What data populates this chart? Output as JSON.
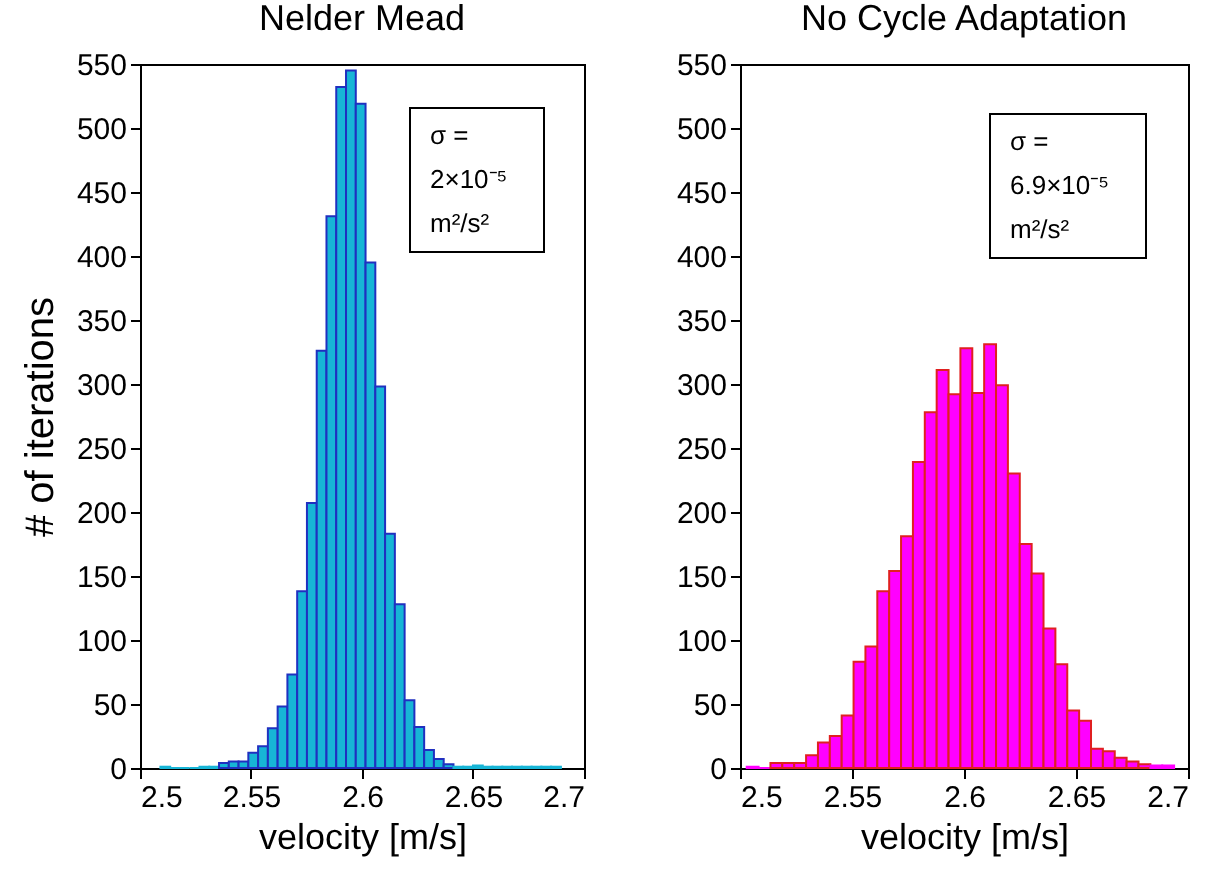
{
  "chart_data": [
    {
      "type": "histogram",
      "title": "Nelder Mead",
      "xlabel": "velocity [m/s]",
      "ylabel": "# of iterations",
      "color": "#17b5d6",
      "bins": [
        2.5092,
        2.5136,
        2.518,
        2.5224,
        2.5268,
        2.5312,
        2.5356,
        2.54,
        2.5444,
        2.5488,
        2.5532,
        2.5576,
        2.562,
        2.5664,
        2.5708,
        2.5752,
        2.5796,
        2.584,
        2.5884,
        2.5928,
        2.5972,
        2.6016,
        2.606,
        2.6104,
        2.6148,
        2.6192,
        2.6236,
        2.628,
        2.6324,
        2.6368,
        2.6412,
        2.6456,
        2.65,
        2.6544,
        2.6588,
        2.6632,
        2.6676,
        2.672,
        2.6764,
        2.6808,
        2.6852,
        2.6896
      ],
      "values": [
        1,
        0,
        0,
        0,
        1,
        1,
        4,
        5,
        5,
        12,
        17,
        31,
        48,
        73,
        138,
        207,
        326,
        431,
        532,
        545,
        519,
        395,
        298,
        183,
        128,
        53,
        32,
        14,
        7,
        3,
        1,
        1,
        2,
        1,
        1,
        1,
        1,
        1,
        1,
        1,
        1
      ],
      "xlim": [
        2.5,
        2.7
      ],
      "xticks": [
        2.5,
        2.55,
        2.6,
        2.65,
        2.7
      ],
      "ylim": [
        0,
        550
      ],
      "yticks": [
        0,
        50,
        100,
        150,
        200,
        250,
        300,
        350,
        400,
        450,
        500,
        550
      ],
      "annotations": [
        "σ =\n2×10⁻⁵\nm²/s²"
      ]
    },
    {
      "type": "histogram",
      "title": "No Cycle Adaptation",
      "xlabel": "velocity [m/s]",
      "color": "#ff00ff",
      "bins": [
        2.503,
        2.5083,
        2.5136,
        2.5189,
        2.5242,
        2.5295,
        2.5348,
        2.5401,
        2.5454,
        2.5507,
        2.556,
        2.5613,
        2.5666,
        2.5719,
        2.5772,
        2.5825,
        2.5878,
        2.5931,
        2.5984,
        2.6037,
        2.609,
        2.6143,
        2.6196,
        2.6249,
        2.6302,
        2.6355,
        2.6408,
        2.6461,
        2.6514,
        2.6567,
        2.662,
        2.6673,
        2.6726,
        2.6779,
        2.6832,
        2.6885,
        2.6938
      ],
      "values": [
        1,
        0,
        4,
        4,
        4,
        10,
        20,
        25,
        41,
        83,
        95,
        138,
        154,
        181,
        239,
        278,
        311,
        292,
        328,
        293,
        331,
        299,
        230,
        175,
        152,
        109,
        81,
        45,
        37,
        15,
        13,
        8,
        5,
        3,
        2,
        2
      ],
      "xlim": [
        2.5,
        2.7
      ],
      "xticks": [
        2.5,
        2.55,
        2.6,
        2.65,
        2.7
      ],
      "ylim": [
        0,
        550
      ],
      "yticks": [
        0,
        50,
        100,
        150,
        200,
        250,
        300,
        350,
        400,
        450,
        500,
        550
      ],
      "annotations": [
        "σ =\n6.9×10⁻⁵\nm²/s²"
      ]
    }
  ]
}
